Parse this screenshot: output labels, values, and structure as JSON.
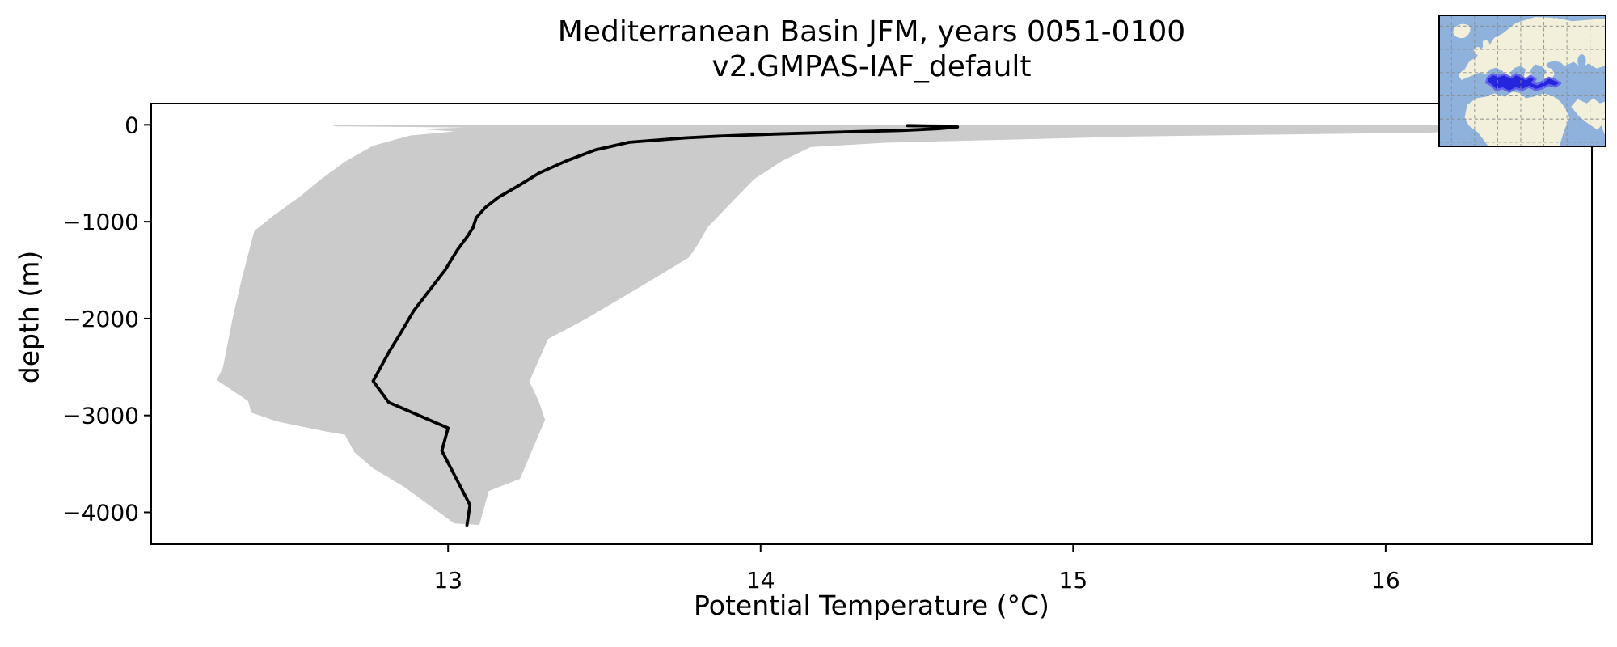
{
  "title": {
    "line1": "Mediterranean Basin JFM, years 0051-0100",
    "line2": "v2.GMPAS-IAF_default"
  },
  "chart_data": {
    "type": "area",
    "title": "Mediterranean Basin JFM, years 0051-0100 v2.GMPAS-IAF_default",
    "xlabel": "Potential Temperature (°C)",
    "ylabel": "depth (m)",
    "xlim": [
      12.05,
      16.66
    ],
    "ylim": [
      -4330,
      220
    ],
    "xticks": [
      13,
      14,
      15,
      16
    ],
    "xtick_labels": [
      "13",
      "14",
      "15",
      "16"
    ],
    "yticks": [
      0,
      -1000,
      -2000,
      -3000,
      -4000
    ],
    "ytick_labels": [
      "0",
      "−1000",
      "−2000",
      "−3000",
      "−4000"
    ],
    "grid": false,
    "legend": "none",
    "series": [
      {
        "name": "mean-profile",
        "type": "line",
        "points": [
          [
            14.47,
            -8
          ],
          [
            14.58,
            -13
          ],
          [
            14.63,
            -22
          ],
          [
            14.57,
            -40
          ],
          [
            14.45,
            -58
          ],
          [
            14.28,
            -72
          ],
          [
            14.05,
            -95
          ],
          [
            13.88,
            -115
          ],
          [
            13.76,
            -135
          ],
          [
            13.58,
            -180
          ],
          [
            13.47,
            -260
          ],
          [
            13.38,
            -370
          ],
          [
            13.29,
            -500
          ],
          [
            13.23,
            -620
          ],
          [
            13.16,
            -750
          ],
          [
            13.12,
            -850
          ],
          [
            13.09,
            -960
          ],
          [
            13.08,
            -1060
          ],
          [
            13.06,
            -1160
          ],
          [
            13.03,
            -1290
          ],
          [
            12.99,
            -1500
          ],
          [
            12.94,
            -1710
          ],
          [
            12.89,
            -1920
          ],
          [
            12.85,
            -2140
          ],
          [
            12.81,
            -2350
          ],
          [
            12.76,
            -2645
          ],
          [
            12.81,
            -2865
          ],
          [
            13.0,
            -3130
          ],
          [
            12.98,
            -3365
          ],
          [
            13.07,
            -3925
          ],
          [
            13.06,
            -4140
          ]
        ]
      },
      {
        "name": "envelope-min-max",
        "type": "band",
        "min": [
          [
            12.63,
            -5
          ],
          [
            12.64,
            -15
          ],
          [
            13.06,
            -28
          ],
          [
            12.9,
            -42
          ],
          [
            13.02,
            -68
          ],
          [
            12.88,
            -110
          ],
          [
            12.76,
            -215
          ],
          [
            12.67,
            -380
          ],
          [
            12.59,
            -570
          ],
          [
            12.53,
            -730
          ],
          [
            12.44,
            -940
          ],
          [
            12.38,
            -1095
          ],
          [
            12.37,
            -1215
          ],
          [
            12.34,
            -1590
          ],
          [
            12.31,
            -2005
          ],
          [
            12.28,
            -2500
          ],
          [
            12.26,
            -2635
          ],
          [
            12.36,
            -2850
          ],
          [
            12.37,
            -2970
          ],
          [
            12.45,
            -3060
          ],
          [
            12.6,
            -3160
          ],
          [
            12.67,
            -3200
          ],
          [
            12.7,
            -3380
          ],
          [
            12.76,
            -3545
          ],
          [
            12.86,
            -3740
          ],
          [
            13.02,
            -4115
          ]
        ],
        "max": [
          [
            16.5,
            -5
          ],
          [
            16.45,
            -30
          ],
          [
            16.15,
            -80
          ],
          [
            15.2,
            -120
          ],
          [
            14.4,
            -185
          ],
          [
            14.16,
            -230
          ],
          [
            14.07,
            -370
          ],
          [
            13.98,
            -560
          ],
          [
            13.91,
            -790
          ],
          [
            13.83,
            -1060
          ],
          [
            13.8,
            -1230
          ],
          [
            13.77,
            -1370
          ],
          [
            13.6,
            -1700
          ],
          [
            13.44,
            -2005
          ],
          [
            13.32,
            -2210
          ],
          [
            13.26,
            -2650
          ],
          [
            13.29,
            -2850
          ],
          [
            13.31,
            -3045
          ],
          [
            13.23,
            -3655
          ],
          [
            13.13,
            -3780
          ],
          [
            13.1,
            -4130
          ]
        ]
      }
    ],
    "colors": {
      "mean_line": "#000000",
      "envelope": "#cbcbcb",
      "axis": "#000000",
      "background": "#ffffff"
    }
  },
  "inset_map": {
    "region_name": "mediterranean-basin",
    "colors": {
      "sea": "#8fb2dc",
      "land": "#f2efda",
      "highlight": "#2525dd",
      "highlight_edge": "#6464ea",
      "grid": "#8a8a8a",
      "border": "#000000"
    }
  }
}
